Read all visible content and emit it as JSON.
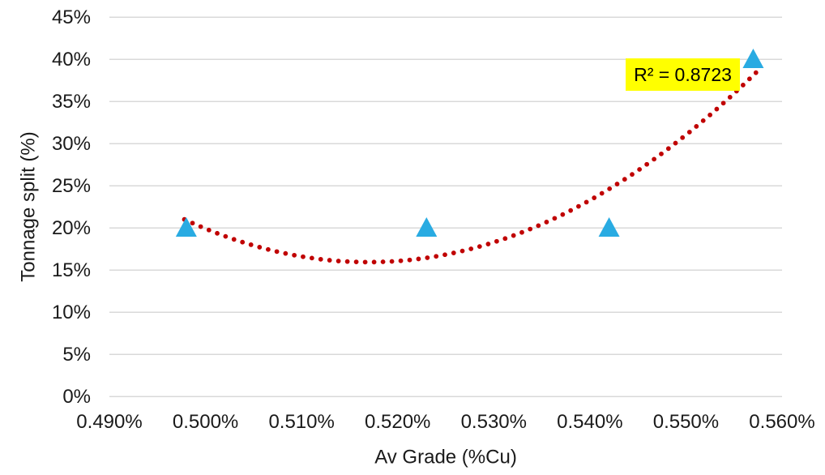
{
  "chart_data": {
    "type": "scatter",
    "title": "",
    "xlabel": "Av Grade (%Cu)",
    "ylabel": "Tonnage split (%)",
    "xlim": [
      0.49,
      0.56
    ],
    "ylim": [
      0,
      45
    ],
    "grid": "horizontal",
    "legend": "none",
    "points": [
      {
        "x": 0.498,
        "y": 20
      },
      {
        "x": 0.523,
        "y": 20
      },
      {
        "x": 0.542,
        "y": 20
      },
      {
        "x": 0.557,
        "y": 40
      }
    ],
    "x_ticks": [
      {
        "value": 0.49,
        "label": "0.490%"
      },
      {
        "value": 0.5,
        "label": "0.500%"
      },
      {
        "value": 0.51,
        "label": "0.510%"
      },
      {
        "value": 0.52,
        "label": "0.520%"
      },
      {
        "value": 0.53,
        "label": "0.530%"
      },
      {
        "value": 0.54,
        "label": "0.540%"
      },
      {
        "value": 0.55,
        "label": "0.550%"
      },
      {
        "value": 0.56,
        "label": "0.560%"
      }
    ],
    "y_ticks": [
      {
        "value": 0,
        "label": "0%"
      },
      {
        "value": 5,
        "label": "5%"
      },
      {
        "value": 10,
        "label": "10%"
      },
      {
        "value": 15,
        "label": "15%"
      },
      {
        "value": 20,
        "label": "20%"
      },
      {
        "value": 25,
        "label": "25%"
      },
      {
        "value": 30,
        "label": "30%"
      },
      {
        "value": 35,
        "label": "35%"
      },
      {
        "value": 40,
        "label": "40%"
      },
      {
        "value": 45,
        "label": "45%"
      }
    ],
    "trendline": {
      "type": "polynomial",
      "order": 2,
      "style": "dotted",
      "r_squared": 0.8723,
      "r_squared_label": "R² = 0.8723"
    },
    "marker": {
      "shape": "triangle-up",
      "color": "#29ABE2"
    },
    "colors": {
      "trendline": "#C00000",
      "marker": "#29ABE2",
      "gridline": "#D9D9D9",
      "axis_text": "#1A1A1A",
      "annotation_bg": "#FFFF00",
      "annotation_text": "#000000",
      "background": "#FFFFFF"
    }
  }
}
